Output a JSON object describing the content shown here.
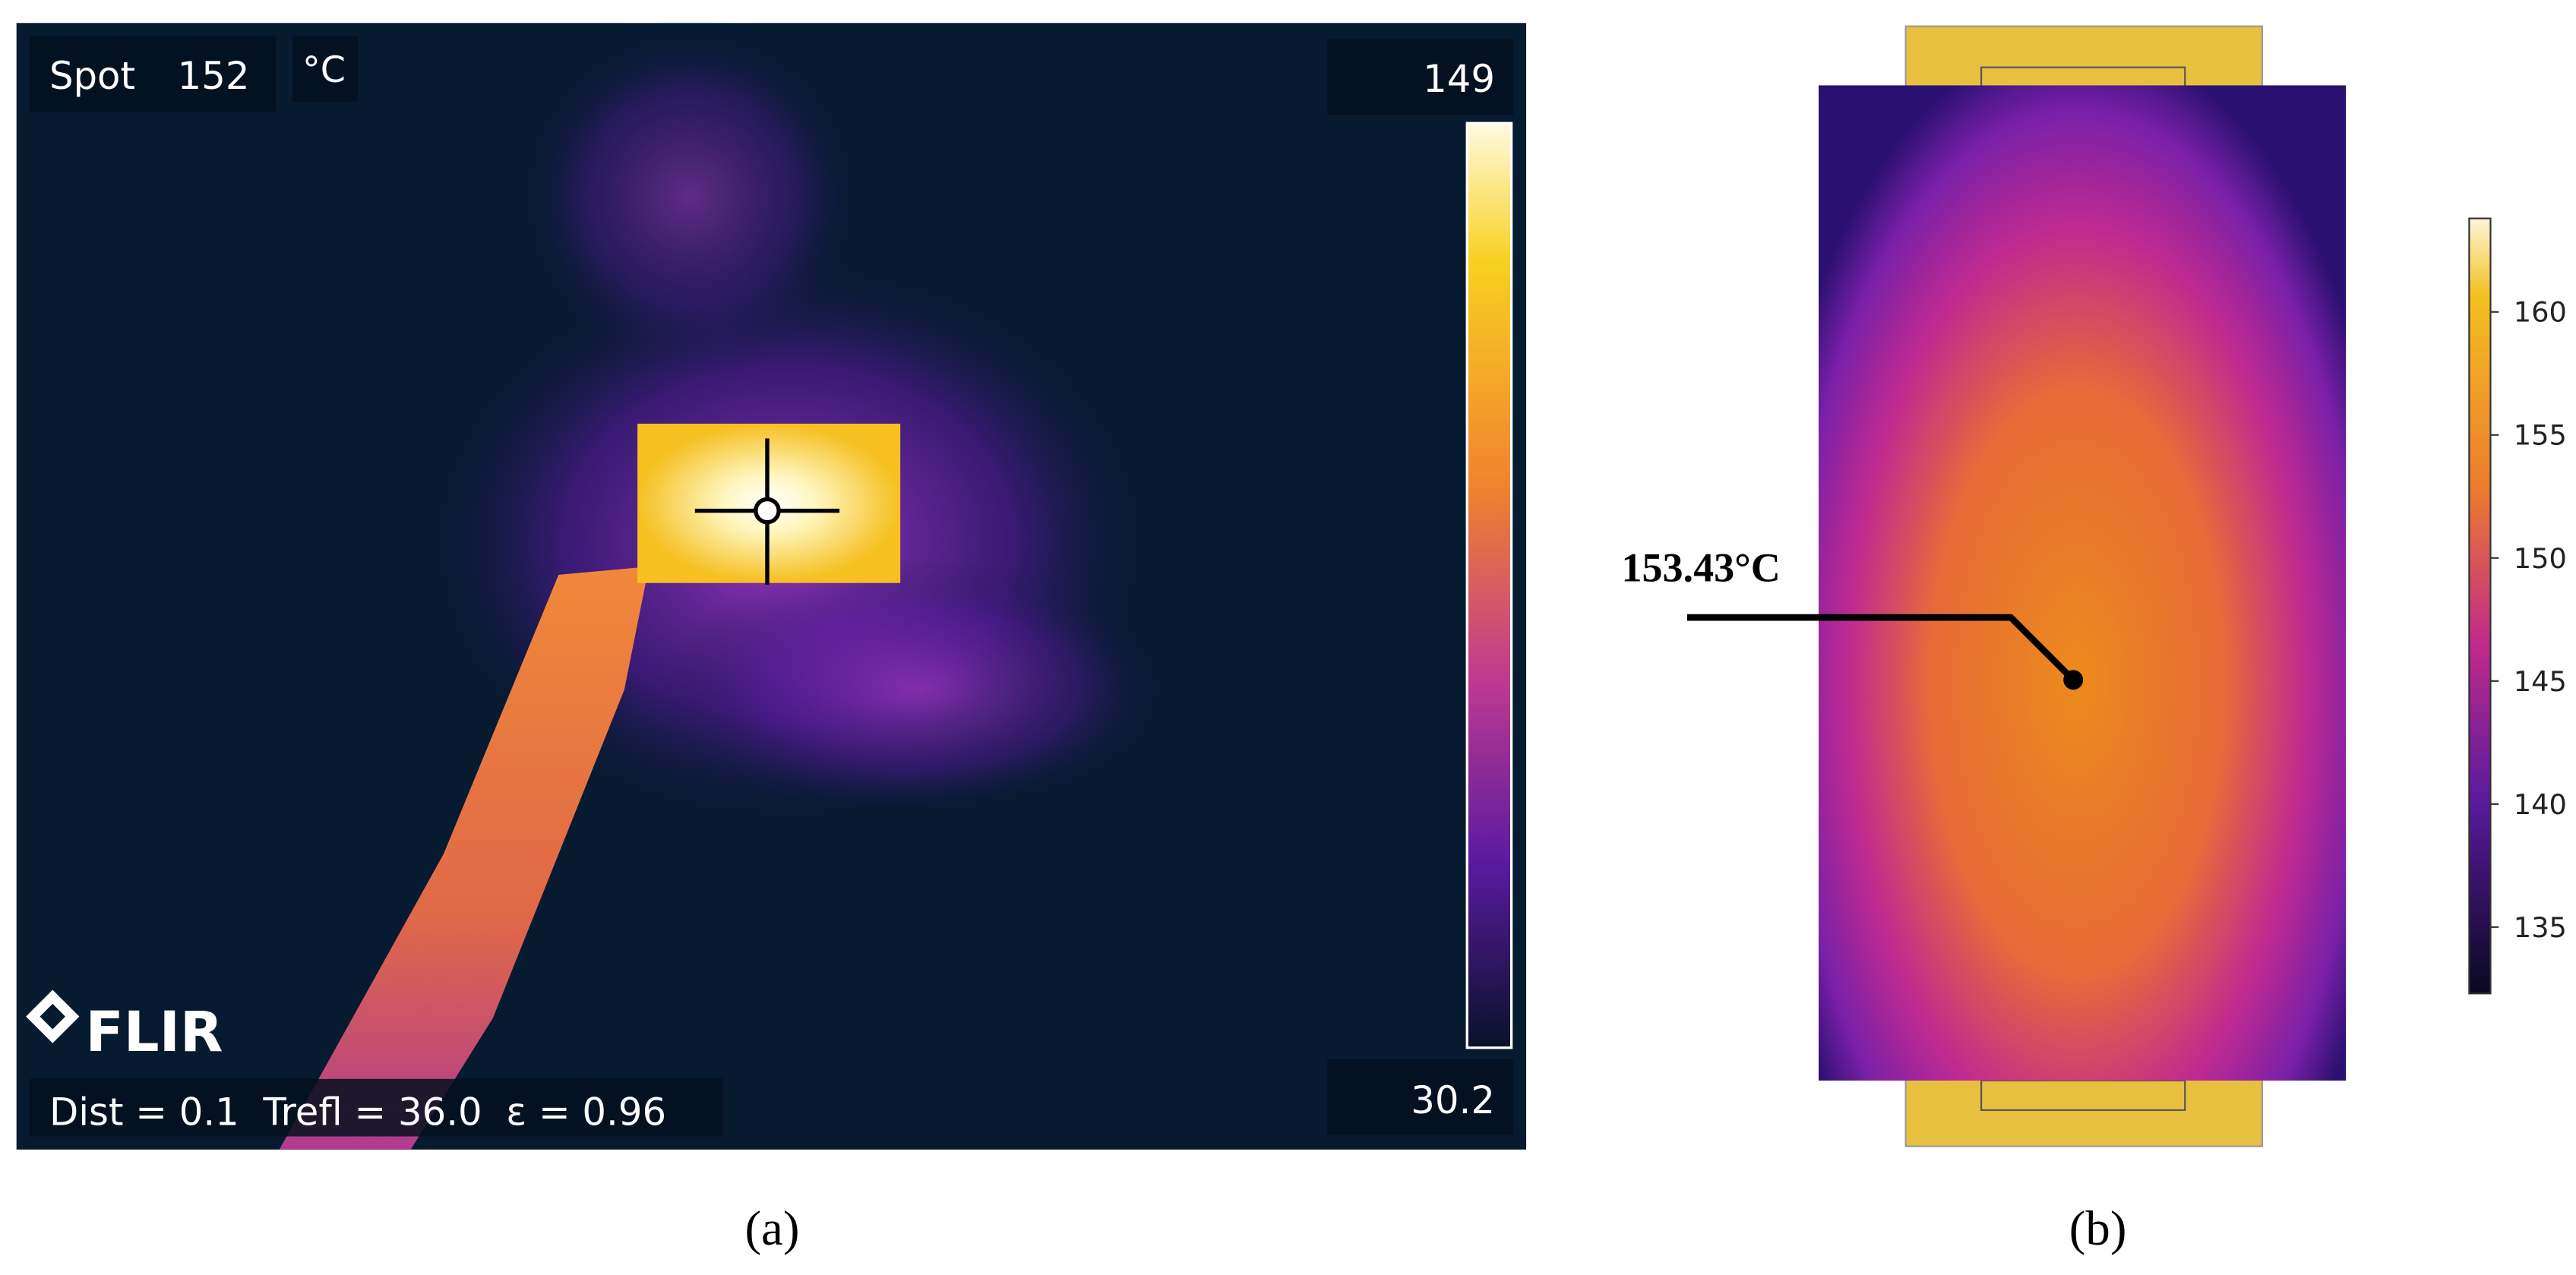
{
  "panel_a": {
    "spot_label": "Spot",
    "spot_value": "152",
    "unit": "°C",
    "scale_max": "149",
    "scale_min": "30.2",
    "logo": "FLIR",
    "params": "Dist = 0.1  Trefl = 36.0  ε = 0.96",
    "caption": "(a)"
  },
  "panel_b": {
    "annotation": "153.43°C",
    "caption": "(b)",
    "colorbar": {
      "lim": [
        132.3,
        163.8
      ],
      "ticks": [
        135,
        140,
        145,
        150,
        155,
        160
      ]
    }
  }
}
